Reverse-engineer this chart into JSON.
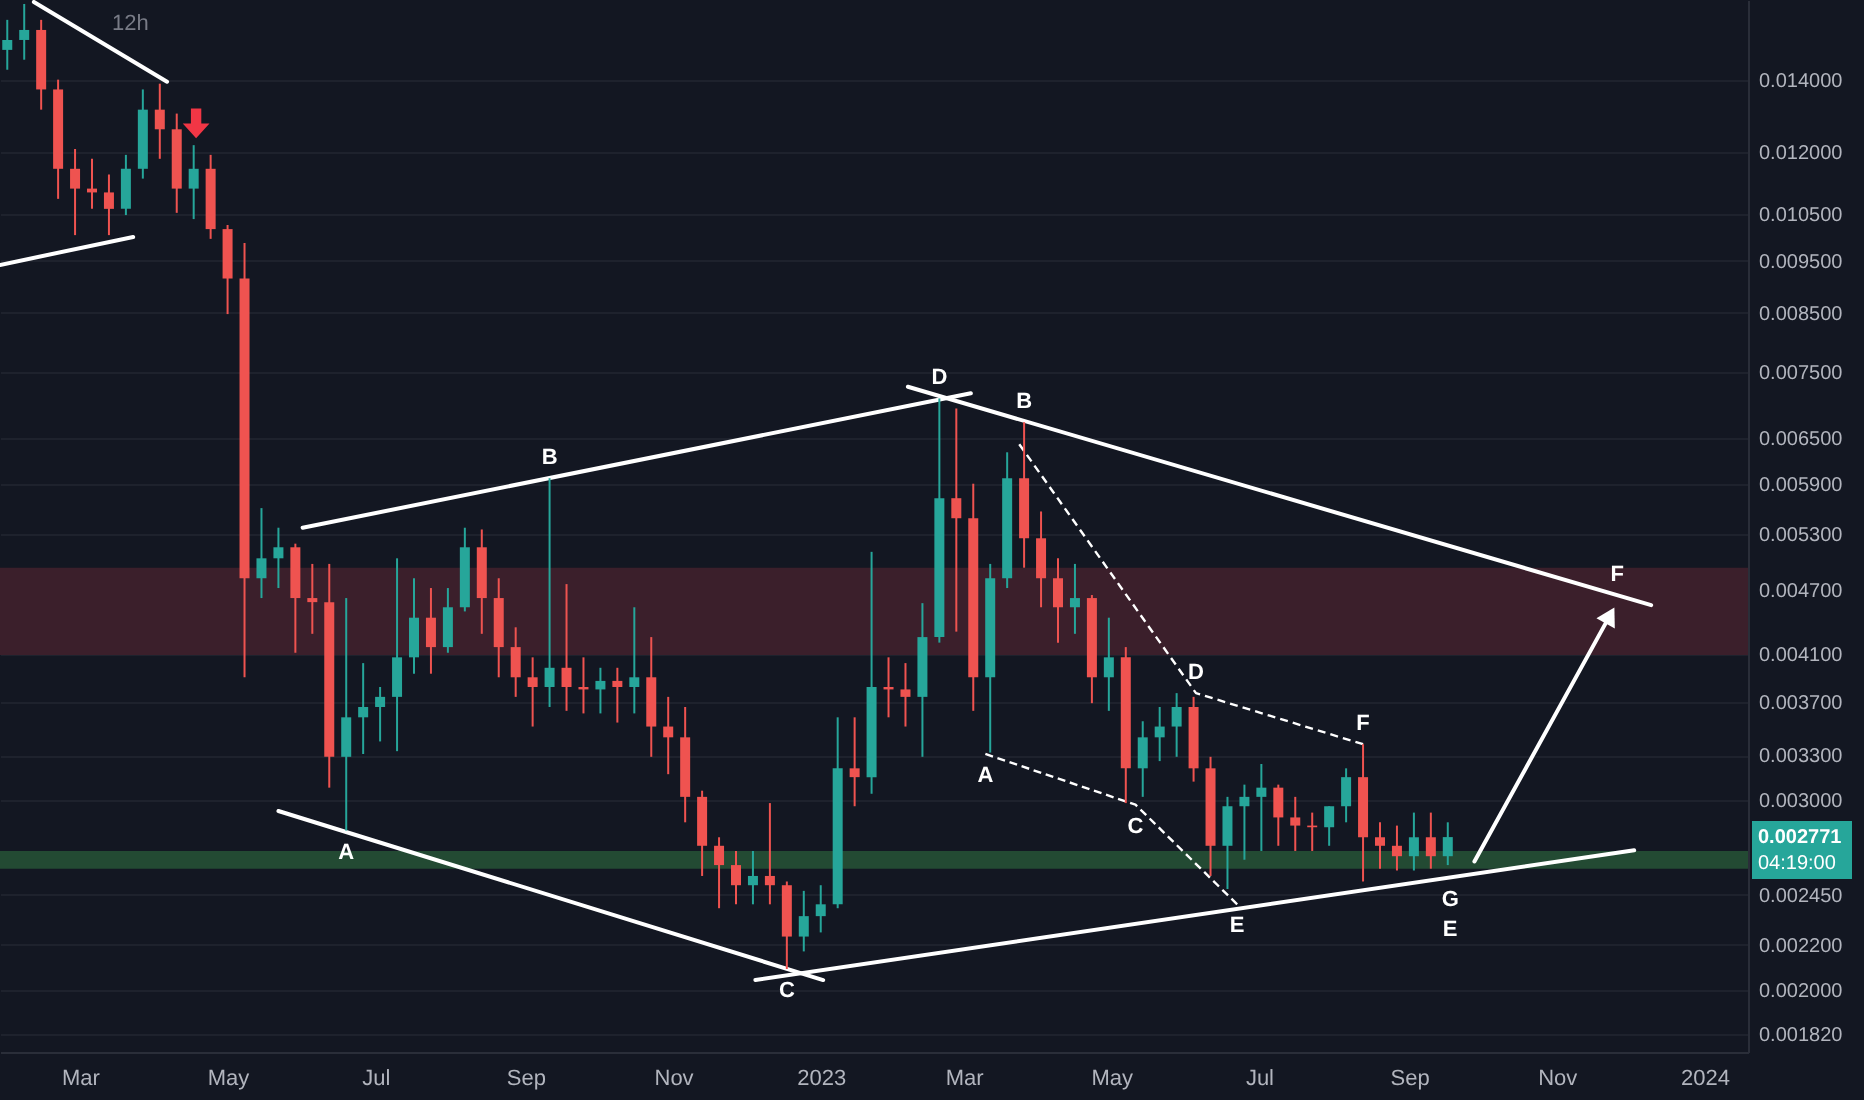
{
  "chart_data": {
    "type": "candlestick",
    "title": "12h",
    "log": true,
    "grid": "y",
    "xlim": [
      "2022-01-27",
      "2024-01-19"
    ],
    "ylim": [
      0.00175,
      0.0166
    ],
    "xticks": [
      {
        "value": "2022-03-01",
        "label": "Mar"
      },
      {
        "value": "2022-05-01",
        "label": "May"
      },
      {
        "value": "2022-07-01",
        "label": "Jul"
      },
      {
        "value": "2022-09-01",
        "label": "Sep"
      },
      {
        "value": "2022-11-01",
        "label": "Nov"
      },
      {
        "value": "2023-01-01",
        "label": "2023"
      },
      {
        "value": "2023-03-01",
        "label": "Mar"
      },
      {
        "value": "2023-05-01",
        "label": "May"
      },
      {
        "value": "2023-07-01",
        "label": "Jul"
      },
      {
        "value": "2023-09-01",
        "label": "Sep"
      },
      {
        "value": "2023-11-01",
        "label": "Nov"
      },
      {
        "value": "2024-01-01",
        "label": "2024"
      }
    ],
    "yticks": [
      {
        "value": 0.014,
        "label": "0.014000"
      },
      {
        "value": 0.012,
        "label": "0.012000"
      },
      {
        "value": 0.0105,
        "label": "0.010500"
      },
      {
        "value": 0.0095,
        "label": "0.009500"
      },
      {
        "value": 0.0085,
        "label": "0.008500"
      },
      {
        "value": 0.0075,
        "label": "0.007500"
      },
      {
        "value": 0.0065,
        "label": "0.006500"
      },
      {
        "value": 0.0059,
        "label": "0.005900"
      },
      {
        "value": 0.0053,
        "label": "0.005300"
      },
      {
        "value": 0.0047,
        "label": "0.004700"
      },
      {
        "value": 0.0041,
        "label": "0.004100"
      },
      {
        "value": 0.0037,
        "label": "0.003700"
      },
      {
        "value": 0.0033,
        "label": "0.003300"
      },
      {
        "value": 0.003,
        "label": "0.003000"
      },
      {
        "value": 0.00245,
        "label": "0.002450"
      },
      {
        "value": 0.0022,
        "label": "0.002200"
      },
      {
        "value": 0.002,
        "label": "0.002000"
      },
      {
        "value": 0.00182,
        "label": "0.001820"
      }
    ],
    "x": [
      "2022-01-30",
      "2022-02-06",
      "2022-02-13",
      "2022-02-20",
      "2022-02-27",
      "2022-03-06",
      "2022-03-13",
      "2022-03-20",
      "2022-03-27",
      "2022-04-03",
      "2022-04-10",
      "2022-04-17",
      "2022-04-24",
      "2022-05-01",
      "2022-05-08",
      "2022-05-15",
      "2022-05-22",
      "2022-05-29",
      "2022-06-05",
      "2022-06-12",
      "2022-06-19",
      "2022-06-26",
      "2022-07-03",
      "2022-07-10",
      "2022-07-17",
      "2022-07-24",
      "2022-07-31",
      "2022-08-07",
      "2022-08-14",
      "2022-08-21",
      "2022-08-28",
      "2022-09-04",
      "2022-09-11",
      "2022-09-18",
      "2022-09-25",
      "2022-10-02",
      "2022-10-09",
      "2022-10-16",
      "2022-10-23",
      "2022-10-30",
      "2022-11-06",
      "2022-11-13",
      "2022-11-20",
      "2022-11-27",
      "2022-12-04",
      "2022-12-11",
      "2022-12-18",
      "2022-12-25",
      "2023-01-01",
      "2023-01-08",
      "2023-01-15",
      "2023-01-22",
      "2023-01-29",
      "2023-02-05",
      "2023-02-12",
      "2023-02-19",
      "2023-02-26",
      "2023-03-05",
      "2023-03-12",
      "2023-03-19",
      "2023-03-26",
      "2023-04-02",
      "2023-04-09",
      "2023-04-16",
      "2023-04-23",
      "2023-04-30",
      "2023-05-07",
      "2023-05-14",
      "2023-05-21",
      "2023-05-28",
      "2023-06-04",
      "2023-06-11",
      "2023-06-18",
      "2023-06-25",
      "2023-07-02",
      "2023-07-09",
      "2023-07-16",
      "2023-07-23",
      "2023-07-30",
      "2023-08-06",
      "2023-08-13",
      "2023-08-20",
      "2023-08-27",
      "2023-09-03",
      "2023-09-10",
      "2023-09-17"
    ],
    "ohlc": [
      [
        0.01492,
        0.01591,
        0.0143,
        0.01524
      ],
      [
        0.01524,
        0.01646,
        0.01461,
        0.01557
      ],
      [
        0.01557,
        0.01591,
        0.01313,
        0.01371
      ],
      [
        0.01371,
        0.014,
        0.01085,
        0.01157
      ],
      [
        0.01157,
        0.01207,
        0.01004,
        0.01109
      ],
      [
        0.01109,
        0.01182,
        0.01062,
        0.011
      ],
      [
        0.011,
        0.01143,
        0.01004,
        0.01062
      ],
      [
        0.01062,
        0.01192,
        0.01048,
        0.01157
      ],
      [
        0.01157,
        0.01371,
        0.01133,
        0.01313
      ],
      [
        0.01313,
        0.01388,
        0.01182,
        0.01259
      ],
      [
        0.01259,
        0.01302,
        0.01053,
        0.01109
      ],
      [
        0.01109,
        0.01217,
        0.01039,
        0.01157
      ],
      [
        0.01157,
        0.01192,
        0.00996,
        0.01017
      ],
      [
        0.01017,
        0.01026,
        0.00848,
        0.00915
      ],
      [
        0.00915,
        0.00987,
        0.0039,
        0.00482
      ],
      [
        0.00482,
        0.0056,
        0.00462,
        0.00503
      ],
      [
        0.00503,
        0.00537,
        0.00472,
        0.00515
      ],
      [
        0.00515,
        0.00519,
        0.00411,
        0.00462
      ],
      [
        0.00462,
        0.00497,
        0.00428,
        0.00458
      ],
      [
        0.00458,
        0.00497,
        0.00308,
        0.00329
      ],
      [
        0.00329,
        0.00462,
        0.00281,
        0.00358
      ],
      [
        0.00358,
        0.00402,
        0.00331,
        0.00366
      ],
      [
        0.00366,
        0.00382,
        0.0034,
        0.00374
      ],
      [
        0.00374,
        0.00503,
        0.00333,
        0.00407
      ],
      [
        0.00407,
        0.00482,
        0.00393,
        0.00443
      ],
      [
        0.00443,
        0.00472,
        0.00393,
        0.00416
      ],
      [
        0.00416,
        0.00472,
        0.00411,
        0.00453
      ],
      [
        0.00453,
        0.00537,
        0.00449,
        0.00515
      ],
      [
        0.00515,
        0.00535,
        0.00428,
        0.00462
      ],
      [
        0.00462,
        0.00482,
        0.0039,
        0.00416
      ],
      [
        0.00416,
        0.00434,
        0.00374,
        0.0039
      ],
      [
        0.0039,
        0.00407,
        0.00351,
        0.00382
      ],
      [
        0.00382,
        0.00597,
        0.00366,
        0.00398
      ],
      [
        0.00398,
        0.00476,
        0.00363,
        0.00382
      ],
      [
        0.00382,
        0.00407,
        0.00361,
        0.0038
      ],
      [
        0.0038,
        0.00398,
        0.00361,
        0.00387
      ],
      [
        0.00387,
        0.00398,
        0.00354,
        0.00382
      ],
      [
        0.00382,
        0.00453,
        0.00361,
        0.0039
      ],
      [
        0.0039,
        0.00425,
        0.00329,
        0.00351
      ],
      [
        0.00351,
        0.00374,
        0.00317,
        0.00343
      ],
      [
        0.00343,
        0.00366,
        0.00286,
        0.00302
      ],
      [
        0.00302,
        0.00306,
        0.00255,
        0.00272
      ],
      [
        0.00272,
        0.00277,
        0.00238,
        0.00261
      ],
      [
        0.00261,
        0.00269,
        0.0024,
        0.0025
      ],
      [
        0.0025,
        0.00269,
        0.0024,
        0.00255
      ],
      [
        0.00255,
        0.00298,
        0.0024,
        0.0025
      ],
      [
        0.0025,
        0.00252,
        0.00209,
        0.00224
      ],
      [
        0.00224,
        0.00247,
        0.00217,
        0.00234
      ],
      [
        0.00234,
        0.0025,
        0.00226,
        0.0024
      ],
      [
        0.0024,
        0.00358,
        0.00238,
        0.00321
      ],
      [
        0.00321,
        0.00358,
        0.00296,
        0.00315
      ],
      [
        0.00315,
        0.0051,
        0.00304,
        0.00382
      ],
      [
        0.00382,
        0.00407,
        0.00358,
        0.0038
      ],
      [
        0.0038,
        0.00402,
        0.00351,
        0.00374
      ],
      [
        0.00374,
        0.00457,
        0.00329,
        0.00425
      ],
      [
        0.00425,
        0.00708,
        0.0042,
        0.00572
      ],
      [
        0.00572,
        0.00693,
        0.0043,
        0.00548
      ],
      [
        0.00548,
        0.0059,
        0.00363,
        0.0039
      ],
      [
        0.0039,
        0.00497,
        0.00332,
        0.00482
      ],
      [
        0.00482,
        0.00631,
        0.00472,
        0.00597
      ],
      [
        0.00597,
        0.00673,
        0.00493,
        0.00525
      ],
      [
        0.00525,
        0.00556,
        0.00453,
        0.00482
      ],
      [
        0.00482,
        0.00503,
        0.0042,
        0.00453
      ],
      [
        0.00453,
        0.00497,
        0.00428,
        0.00462
      ],
      [
        0.00462,
        0.00465,
        0.00369,
        0.0039
      ],
      [
        0.0039,
        0.00443,
        0.00363,
        0.00407
      ],
      [
        0.00407,
        0.00416,
        0.00298,
        0.00321
      ],
      [
        0.00321,
        0.00355,
        0.00302,
        0.00343
      ],
      [
        0.00343,
        0.00366,
        0.00326,
        0.00351
      ],
      [
        0.00351,
        0.00377,
        0.00329,
        0.00366
      ],
      [
        0.00366,
        0.00374,
        0.00312,
        0.00321
      ],
      [
        0.00321,
        0.00329,
        0.00255,
        0.00272
      ],
      [
        0.00272,
        0.00302,
        0.00248,
        0.00296
      ],
      [
        0.00296,
        0.0031,
        0.00264,
        0.00302
      ],
      [
        0.00302,
        0.00324,
        0.00269,
        0.00308
      ],
      [
        0.00308,
        0.0031,
        0.00272,
        0.00289
      ],
      [
        0.00289,
        0.00302,
        0.00269,
        0.00284
      ],
      [
        0.00284,
        0.00292,
        0.00269,
        0.00283
      ],
      [
        0.00283,
        0.00296,
        0.00272,
        0.00296
      ],
      [
        0.00296,
        0.00321,
        0.00286,
        0.00315
      ],
      [
        0.00315,
        0.00338,
        0.00252,
        0.00277
      ],
      [
        0.00277,
        0.00286,
        0.00259,
        0.00272
      ],
      [
        0.00272,
        0.00284,
        0.00258,
        0.00266
      ],
      [
        0.00266,
        0.00292,
        0.00258,
        0.00277
      ],
      [
        0.00277,
        0.00292,
        0.00259,
        0.00266
      ],
      [
        0.00266,
        0.00286,
        0.00261,
        0.002771
      ]
    ],
    "colors": [
      "#26a69a",
      "#26a69a",
      "#ef5350",
      "#ef5350",
      "#ef5350",
      "#ef5350",
      "#ef5350",
      "#26a69a",
      "#26a69a",
      "#ef5350",
      "#ef5350",
      "#26a69a",
      "#ef5350",
      "#ef5350",
      "#ef5350",
      "#26a69a",
      "#26a69a",
      "#ef5350",
      "#ef5350",
      "#ef5350",
      "#26a69a",
      "#26a69a",
      "#26a69a",
      "#26a69a",
      "#26a69a",
      "#ef5350",
      "#26a69a",
      "#26a69a",
      "#ef5350",
      "#ef5350",
      "#ef5350",
      "#ef5350",
      "#26a69a",
      "#ef5350",
      "#ef5350",
      "#26a69a",
      "#ef5350",
      "#26a69a",
      "#ef5350",
      "#ef5350",
      "#ef5350",
      "#ef5350",
      "#ef5350",
      "#ef5350",
      "#26a69a",
      "#ef5350",
      "#ef5350",
      "#26a69a",
      "#26a69a",
      "#26a69a",
      "#ef5350",
      "#26a69a",
      "#ef5350",
      "#ef5350",
      "#26a69a",
      "#26a69a",
      "#ef5350",
      "#ef5350",
      "#26a69a",
      "#26a69a",
      "#ef5350",
      "#ef5350",
      "#ef5350",
      "#26a69a",
      "#ef5350",
      "#26a69a",
      "#ef5350",
      "#26a69a",
      "#26a69a",
      "#26a69a",
      "#ef5350",
      "#ef5350",
      "#26a69a",
      "#26a69a",
      "#26a69a",
      "#ef5350",
      "#ef5350",
      "#ef5350",
      "#26a69a",
      "#26a69a",
      "#ef5350",
      "#ef5350",
      "#ef5350",
      "#26a69a",
      "#ef5350",
      "#26a69a"
    ],
    "series": [
      {
        "type": "line",
        "color": "#ffffff",
        "x": [
          "2022-02-10",
          "2022-04-06"
        ],
        "values": [
          0.01653,
          0.01394
        ]
      },
      {
        "type": "line",
        "color": "#ffffff",
        "x": [
          "2022-01-27",
          "2022-03-23"
        ],
        "values": [
          0.00942,
          0.01
        ]
      },
      {
        "type": "line",
        "color": "#ffffff",
        "x": [
          "2022-06-01",
          "2023-03-04"
        ],
        "values": [
          0.00537,
          0.00716
        ]
      },
      {
        "type": "line",
        "color": "#ffffff",
        "x": [
          "2023-02-06",
          "2023-12-10"
        ],
        "values": [
          0.00726,
          0.00455
        ]
      },
      {
        "type": "line",
        "color": "#ffffff",
        "x": [
          "2022-05-22",
          "2023-01-02"
        ],
        "values": [
          0.00293,
          0.002041
        ]
      },
      {
        "type": "line",
        "color": "#ffffff",
        "x": [
          "2022-12-05",
          "2023-12-03"
        ],
        "values": [
          0.002041,
          0.002694
        ]
      },
      {
        "type": "line",
        "color": "#ffffff",
        "line_style": "dashed",
        "x": [
          "2023-03-24",
          "2023-06-05",
          "2023-08-13"
        ],
        "values": [
          0.00642,
          0.00377,
          0.00338
        ]
      },
      {
        "type": "line",
        "color": "#ffffff",
        "line_style": "dashed",
        "x": [
          "2023-03-10",
          "2023-05-11",
          "2023-06-22"
        ],
        "values": [
          0.00331,
          0.00297,
          0.0024
        ]
      },
      {
        "type": "line",
        "color": "#ffffff",
        "marker": "triangle",
        "x": [
          "2023-09-28",
          "2023-11-23"
        ],
        "values": [
          0.00263,
          0.004452
        ]
      },
      {
        "type": "scatter",
        "color": "#f23645",
        "marker": "triangle",
        "x": [
          "2022-04-18"
        ],
        "values": [
          0.01275
        ]
      }
    ],
    "bands": [
      {
        "axis": "y",
        "from": 0.00409,
        "to": 0.00493,
        "color": "#3b1f2b"
      },
      {
        "axis": "y",
        "from": 0.00259,
        "to": 0.00269,
        "color": "#234a33"
      }
    ],
    "annotations": [
      {
        "text": "B",
        "x": "2022-09-11",
        "y": 0.00597
      },
      {
        "text": "D",
        "x": "2023-02-19",
        "y": 0.00708
      },
      {
        "text": "A",
        "x": "2022-06-19",
        "y": 0.00281
      },
      {
        "text": "C",
        "x": "2022-12-18",
        "y": 0.00209
      },
      {
        "text": "F",
        "x": "2023-11-26",
        "y": 0.004649
      },
      {
        "text": "B",
        "x": "2023-03-26",
        "y": 0.00673
      },
      {
        "text": "A",
        "x": "2023-03-10",
        "y": 0.00331
      },
      {
        "text": "C",
        "x": "2023-05-11",
        "y": 0.00297
      },
      {
        "text": "D",
        "x": "2023-06-05",
        "y": 0.00377
      },
      {
        "text": "E",
        "x": "2023-06-22",
        "y": 0.0024
      },
      {
        "text": "F",
        "x": "2023-08-13",
        "y": 0.00338
      },
      {
        "text": "G",
        "x": "2023-09-18",
        "y": 0.002541
      },
      {
        "text": "E",
        "x": "2023-09-18",
        "y": 0.002541
      },
      "0.002771",
      "04:19:00"
    ]
  }
}
